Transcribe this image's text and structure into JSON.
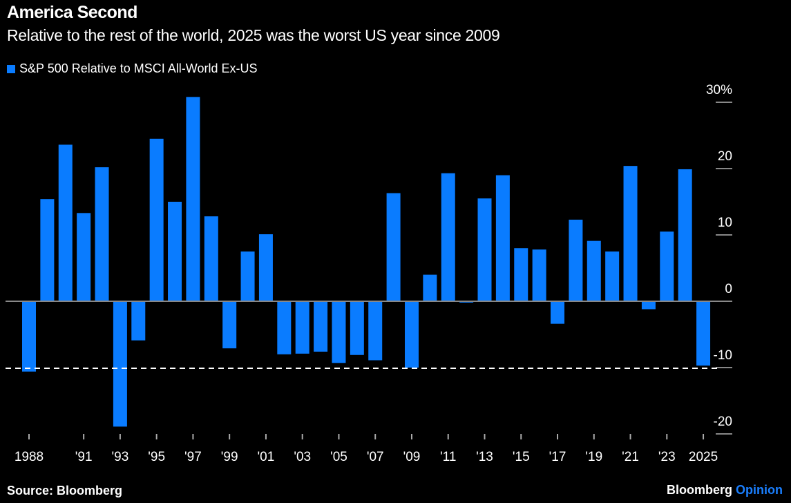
{
  "header": {
    "title": "America Second",
    "subtitle": "Relative to the rest of the world, 2025 was the worst US year since 2009"
  },
  "footer": {
    "source": "Source: Bloomberg",
    "brand": "Bloomberg",
    "brand_accent": "Opinion"
  },
  "colors": {
    "bar": "#0a7cff",
    "background": "#000000",
    "reference_line": "#ffffff"
  },
  "chart_data": {
    "type": "bar",
    "title": "America Second",
    "subtitle": "Relative to the rest of the world, 2025 was the worst US year since 2009",
    "legend": [
      "S&P 500 Relative to MSCI All-World Ex-US"
    ],
    "legend_placement": "top-left",
    "ylabel": "",
    "xlabel": "",
    "ylim": [
      -20,
      30
    ],
    "y_ticks": [
      30,
      20,
      10,
      0,
      -10,
      -20
    ],
    "y_tick_labels": [
      "30%",
      "20",
      "10",
      "0",
      "-10",
      "-20"
    ],
    "x_tick_labels": [
      {
        "year": 1988,
        "label": "1988"
      },
      {
        "year": 1991,
        "label": "'91"
      },
      {
        "year": 1993,
        "label": "'93"
      },
      {
        "year": 1995,
        "label": "'95"
      },
      {
        "year": 1997,
        "label": "'97"
      },
      {
        "year": 1999,
        "label": "'99"
      },
      {
        "year": 2001,
        "label": "'01"
      },
      {
        "year": 2003,
        "label": "'03"
      },
      {
        "year": 2005,
        "label": "'05"
      },
      {
        "year": 2007,
        "label": "'07"
      },
      {
        "year": 2009,
        "label": "'09"
      },
      {
        "year": 2011,
        "label": "'11"
      },
      {
        "year": 2013,
        "label": "'13"
      },
      {
        "year": 2015,
        "label": "'15"
      },
      {
        "year": 2017,
        "label": "'17"
      },
      {
        "year": 2019,
        "label": "'19"
      },
      {
        "year": 2021,
        "label": "'21"
      },
      {
        "year": 2023,
        "label": "'23"
      },
      {
        "year": 2025,
        "label": "2025"
      }
    ],
    "reference_line": {
      "value": -10,
      "style": "dashed"
    },
    "categories": [
      1988,
      1989,
      1990,
      1991,
      1992,
      1993,
      1994,
      1995,
      1996,
      1997,
      1998,
      1999,
      2000,
      2001,
      2002,
      2003,
      2004,
      2005,
      2006,
      2007,
      2008,
      2009,
      2010,
      2011,
      2012,
      2013,
      2014,
      2015,
      2016,
      2017,
      2018,
      2019,
      2020,
      2021,
      2022,
      2023,
      2024,
      2025
    ],
    "series": [
      {
        "name": "S&P 500 Relative to MSCI All-World Ex-US",
        "values": [
          -10.6,
          15.4,
          23.6,
          13.3,
          20.2,
          -18.9,
          -5.9,
          24.5,
          15.0,
          30.8,
          12.8,
          -7.1,
          7.5,
          10.1,
          -8.0,
          -7.9,
          -7.6,
          -9.3,
          -8.1,
          -8.9,
          16.3,
          -10.0,
          4.0,
          19.3,
          -0.2,
          15.5,
          19.0,
          8.0,
          7.8,
          -3.4,
          12.3,
          9.1,
          7.5,
          20.4,
          -1.2,
          10.5,
          19.9,
          -9.7
        ]
      }
    ]
  }
}
